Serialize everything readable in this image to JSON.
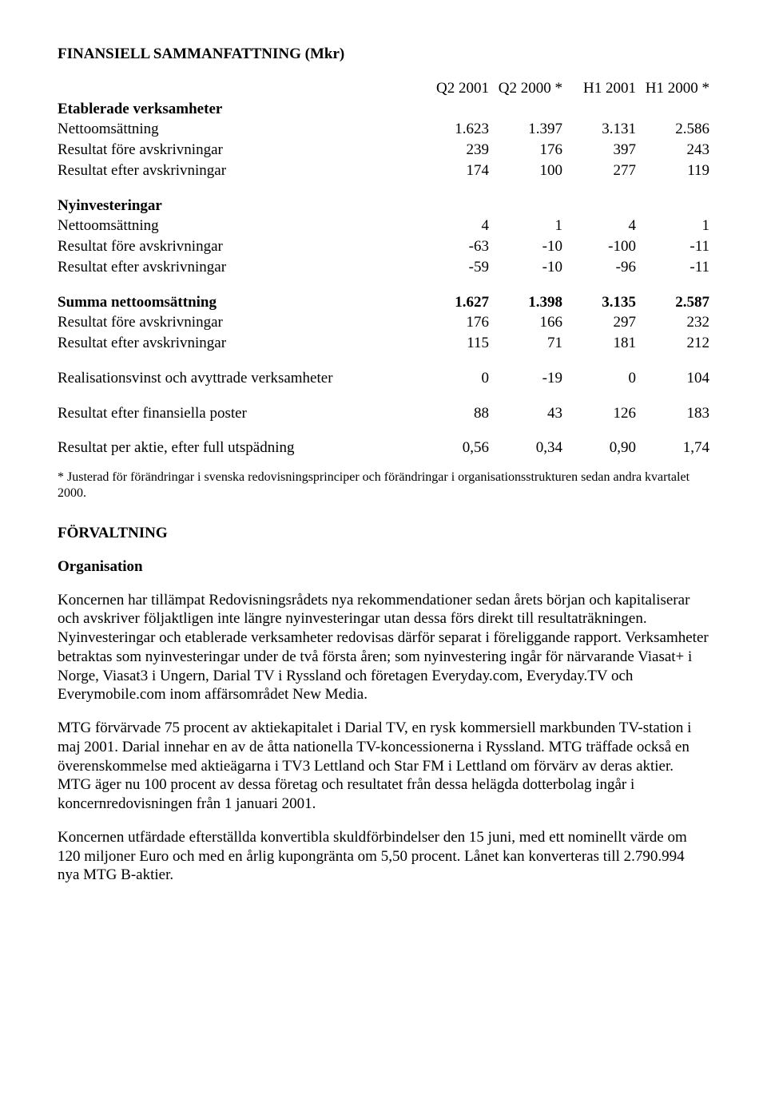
{
  "title": "FINANSIELL SAMMANFATTNING (Mkr)",
  "columns": [
    "Q2 2001",
    "Q2 2000 *",
    "H1 2001",
    "H1 2000 *"
  ],
  "sections": [
    {
      "header": "Etablerade verksamheter",
      "rows": [
        {
          "label": "Nettoomsättning",
          "vals": [
            "1.623",
            "1.397",
            "3.131",
            "2.586"
          ]
        },
        {
          "label": "Resultat före avskrivningar",
          "vals": [
            "239",
            "176",
            "397",
            "243"
          ]
        },
        {
          "label": "Resultat efter avskrivningar",
          "vals": [
            "174",
            "100",
            "277",
            "119"
          ]
        }
      ]
    },
    {
      "header": "Nyinvesteringar",
      "rows": [
        {
          "label": "Nettoomsättning",
          "vals": [
            "4",
            "1",
            "4",
            "1"
          ]
        },
        {
          "label": "Resultat före avskrivningar",
          "vals": [
            "-63",
            "-10",
            "-100",
            "-11"
          ]
        },
        {
          "label": "Resultat efter avskrivningar",
          "vals": [
            "-59",
            "-10",
            "-96",
            "-11"
          ]
        }
      ]
    },
    {
      "header": "",
      "rows": [
        {
          "label": "Summa nettoomsättning",
          "vals": [
            "1.627",
            "1.398",
            "3.135",
            "2.587"
          ],
          "bold": true
        },
        {
          "label": "Resultat före avskrivningar",
          "vals": [
            "176",
            "166",
            "297",
            "232"
          ]
        },
        {
          "label": "Resultat efter avskrivningar",
          "vals": [
            "115",
            "71",
            "181",
            "212"
          ]
        }
      ]
    }
  ],
  "summary_rows": [
    {
      "label": "Realisationsvinst och avyttrade verksamheter",
      "vals": [
        "0",
        "-19",
        "0",
        "104"
      ]
    },
    {
      "label": "Resultat efter finansiella poster",
      "vals": [
        "88",
        "43",
        "126",
        "183"
      ]
    },
    {
      "label": "Resultat per aktie, efter full utspädning",
      "vals": [
        "0,56",
        "0,34",
        "0,90",
        "1,74"
      ]
    }
  ],
  "footnote": "* Justerad för förändringar i svenska redovisningsprinciper och förändringar i organisationsstrukturen sedan andra kvartalet 2000.",
  "section2": {
    "heading": "FÖRVALTNING",
    "subheading": "Organisation",
    "paras": [
      "Koncernen har tillämpat Redovisningsrådets nya rekommendationer sedan årets början och kapitaliserar och avskriver följaktligen inte längre nyinvesteringar utan dessa förs direkt till resultaträkningen. Nyinvesteringar och etablerade verksamheter redovisas därför separat i föreliggande rapport. Verksamheter betraktas som nyinvesteringar under de två första åren; som nyinvestering ingår för närvarande Viasat+ i Norge, Viasat3 i Ungern, Darial TV i Ryssland och företagen Everyday.com, Everyday.TV och Everymobile.com inom affärsområdet New Media.",
      "MTG förvärvade 75 procent av aktiekapitalet i Darial TV, en rysk kommersiell markbunden TV-station i maj 2001. Darial innehar en av de åtta nationella TV-koncessionerna i Ryssland. MTG träffade också en överenskommelse med aktieägarna i TV3 Lettland och Star FM i Lettland om förvärv av deras aktier. MTG äger nu 100 procent av dessa företag och resultatet från dessa helägda dotterbolag ingår i koncernredovisningen från 1 januari 2001.",
      "Koncernen utfärdade efterställda konvertibla skuldförbindelser den 15 juni, med ett nominellt värde om 120 miljoner Euro och med en årlig kupongränta om 5,50 procent. Lånet kan konverteras till 2.790.994 nya MTG B-aktier."
    ]
  }
}
